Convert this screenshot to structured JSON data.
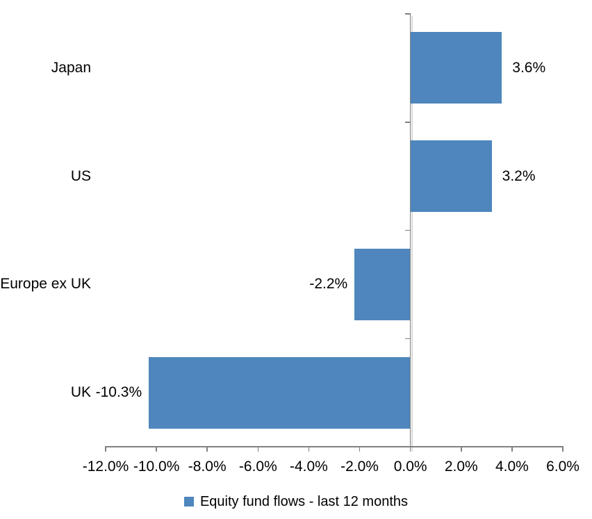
{
  "chart_data": {
    "type": "bar",
    "orientation": "horizontal",
    "title": "",
    "categories": [
      "Japan",
      "US",
      "Europe ex UK",
      "UK"
    ],
    "series": [
      {
        "name": "Equity fund flows - last 12 months",
        "values": [
          3.6,
          3.2,
          -2.2,
          -10.3
        ],
        "data_labels": [
          "3.6%",
          "3.2%",
          "-2.2%",
          "-10.3%"
        ],
        "color": "#4E86BD"
      }
    ],
    "xlim": [
      -12,
      6
    ],
    "x_ticks": [
      -12,
      -10,
      -8,
      -6,
      -4,
      -2,
      0,
      2,
      4,
      6
    ],
    "x_tick_labels": [
      "-12.0%",
      "-10.0%",
      "-8.0%",
      "-6.0%",
      "-4.0%",
      "-2.0%",
      "0.0%",
      "2.0%",
      "4.0%",
      "6.0%"
    ],
    "grid": false,
    "legend_position": "bottom-center",
    "axis_color": "#808080",
    "axis_shadow_color": "#D9D9D9",
    "text_color": "#000000"
  }
}
